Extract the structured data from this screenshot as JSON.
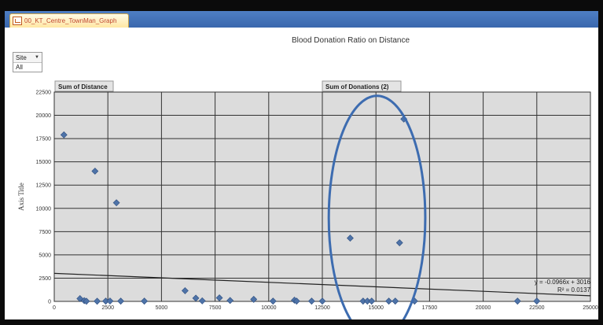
{
  "tab": {
    "label": "00_KT_Centre_TownMan_Graph"
  },
  "filter": {
    "label": "Site",
    "value": "All"
  },
  "fields": {
    "x_field": "Sum of Distance",
    "y_field": "Sum of Donations (2)"
  },
  "colors": {
    "plot_background": "#dcdcdc",
    "grid": "#333333",
    "marker": "#4e73a8",
    "trendline": "#222222",
    "highlight_ellipse": "#3d6cb0"
  },
  "chart_data": {
    "type": "scatter",
    "title": "Blood Donation Ratio on Distance",
    "xlabel": "",
    "ylabel": "Axis Title",
    "xlim": [
      0,
      25000
    ],
    "ylim": [
      0,
      22500
    ],
    "x_ticks": [
      0,
      2500,
      5000,
      7500,
      10000,
      12500,
      15000,
      17500,
      20000,
      22500,
      25000
    ],
    "y_ticks": [
      0,
      2500,
      5000,
      7500,
      10000,
      12500,
      15000,
      17500,
      20000,
      22500
    ],
    "grid": true,
    "legend": "none",
    "series": [
      {
        "points": [
          {
            "x": 450,
            "y": 17900
          },
          {
            "x": 1900,
            "y": 14000
          },
          {
            "x": 2900,
            "y": 10600
          },
          {
            "x": 1200,
            "y": 300
          },
          {
            "x": 1400,
            "y": 80
          },
          {
            "x": 1500,
            "y": 20
          },
          {
            "x": 2000,
            "y": 20
          },
          {
            "x": 2400,
            "y": 30
          },
          {
            "x": 2600,
            "y": 40
          },
          {
            "x": 3100,
            "y": 30
          },
          {
            "x": 4200,
            "y": 30
          },
          {
            "x": 6100,
            "y": 1150
          },
          {
            "x": 6600,
            "y": 350
          },
          {
            "x": 6900,
            "y": 60
          },
          {
            "x": 7700,
            "y": 380
          },
          {
            "x": 8200,
            "y": 100
          },
          {
            "x": 9300,
            "y": 220
          },
          {
            "x": 10200,
            "y": 30
          },
          {
            "x": 11200,
            "y": 130
          },
          {
            "x": 11300,
            "y": 30
          },
          {
            "x": 12000,
            "y": 30
          },
          {
            "x": 12500,
            "y": 30
          },
          {
            "x": 13800,
            "y": 6800
          },
          {
            "x": 14400,
            "y": 30
          },
          {
            "x": 14600,
            "y": 30
          },
          {
            "x": 14800,
            "y": 30
          },
          {
            "x": 15600,
            "y": 30
          },
          {
            "x": 15900,
            "y": 30
          },
          {
            "x": 16100,
            "y": 6300
          },
          {
            "x": 16300,
            "y": 19600
          },
          {
            "x": 16800,
            "y": 30
          },
          {
            "x": 21600,
            "y": 30
          },
          {
            "x": 22500,
            "y": 30
          }
        ]
      }
    ],
    "trendline": {
      "slope": -0.0966,
      "intercept": 3016
    },
    "annotations": {
      "equation": "y = -0.0966x + 3016",
      "r_squared": "R² = 0.0137"
    },
    "highlight": {
      "center_x": 15050,
      "center_y": 9000,
      "radius_x": 2250,
      "radius_y": 13100
    }
  }
}
